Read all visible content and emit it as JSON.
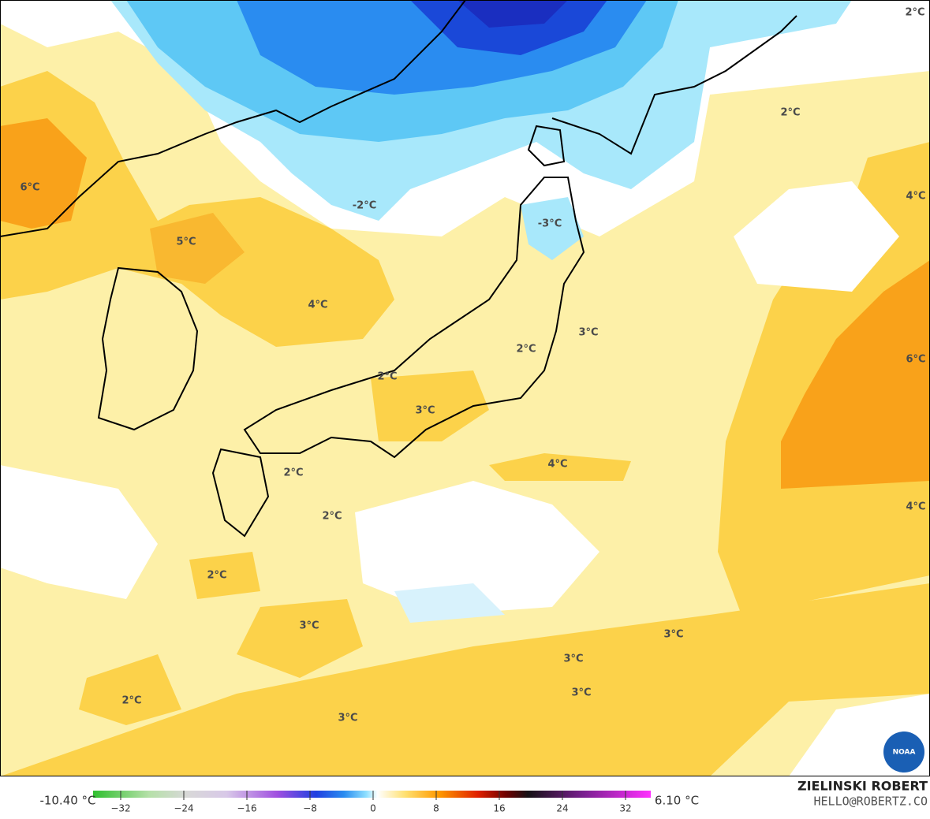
{
  "map": {
    "labels": [
      "2°C",
      "2°C",
      "6°C",
      "-2°C",
      "-3°C",
      "4°C",
      "5°C",
      "4°C",
      "3°C",
      "2°C",
      "6°C",
      "2°C",
      "3°C",
      "4°C",
      "2°C",
      "4°C",
      "2°C",
      "2°C",
      "3°C",
      "3°C",
      "3°C",
      "3°C",
      "2°C",
      "3°C"
    ],
    "logo": "NOAA"
  },
  "colorbar": {
    "min_label": "-10.40 °C",
    "max_label": "6.10 °C",
    "range": [
      -35.5,
      35.2
    ],
    "ticks": [
      {
        "value": -32,
        "label": "−32"
      },
      {
        "value": -24,
        "label": "−24"
      },
      {
        "value": -16,
        "label": "−16"
      },
      {
        "value": -8,
        "label": "−8"
      },
      0,
      8,
      16,
      24,
      32
    ]
  },
  "credit": {
    "author": "ZIELINSKI ROBERT",
    "contact": "HELLO@ROBERTZ.CO"
  }
}
